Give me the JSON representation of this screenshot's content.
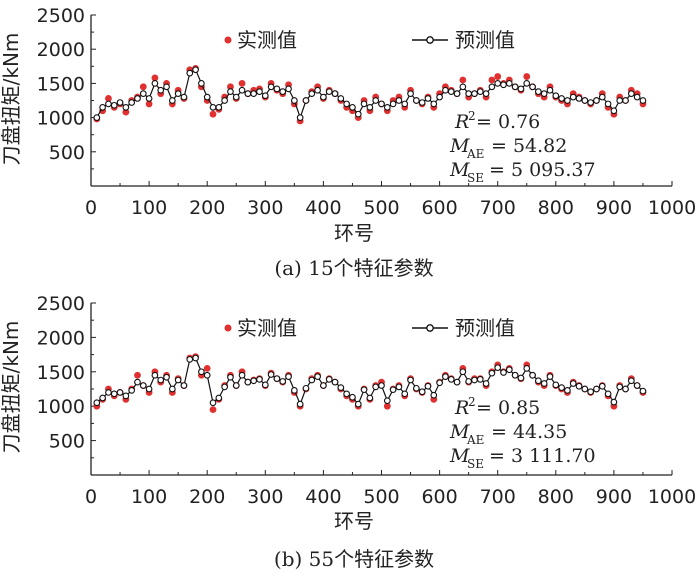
{
  "chart_data": [
    {
      "type": "scatter",
      "caption": "(a)  15个特征参数",
      "xlabel": "环号",
      "ylabel": "刀盘扭矩/kNm",
      "xlim": [
        0,
        1000
      ],
      "ylim": [
        0,
        2500
      ],
      "xticks": [
        "0",
        "100",
        "200",
        "300",
        "400",
        "500",
        "600",
        "700",
        "800",
        "900",
        "1000"
      ],
      "yticks": [
        "500",
        "1000",
        "1500",
        "2000",
        "2500"
      ],
      "legend": {
        "position": "top",
        "measured_label": "实测值",
        "predicted_label": "预测值"
      },
      "metrics": {
        "r2": "= 0.76",
        "mae": "= 54.82",
        "mse": "= 5 095.37"
      },
      "colors": {
        "measured": "#e03030",
        "predicted": "#111111"
      },
      "x": [
        10,
        20,
        30,
        40,
        50,
        60,
        70,
        80,
        90,
        100,
        110,
        120,
        130,
        140,
        150,
        160,
        170,
        180,
        190,
        200,
        210,
        220,
        230,
        240,
        250,
        260,
        270,
        280,
        290,
        300,
        310,
        320,
        330,
        340,
        350,
        360,
        370,
        380,
        390,
        400,
        410,
        420,
        430,
        440,
        450,
        460,
        470,
        480,
        490,
        500,
        510,
        520,
        530,
        540,
        550,
        560,
        570,
        580,
        590,
        600,
        610,
        620,
        630,
        640,
        650,
        660,
        670,
        680,
        690,
        700,
        710,
        720,
        730,
        740,
        750,
        760,
        770,
        780,
        790,
        800,
        810,
        820,
        830,
        840,
        850,
        860,
        870,
        880,
        890,
        900,
        910,
        920,
        930,
        940,
        950
      ],
      "series": [
        {
          "name": "实测值",
          "values": [
            980,
            1100,
            1280,
            1150,
            1200,
            1080,
            1250,
            1300,
            1450,
            1200,
            1580,
            1350,
            1500,
            1200,
            1400,
            1280,
            1700,
            1720,
            1450,
            1250,
            1050,
            1120,
            1300,
            1450,
            1280,
            1500,
            1350,
            1400,
            1420,
            1300,
            1500,
            1400,
            1350,
            1480,
            1200,
            950,
            1250,
            1380,
            1450,
            1280,
            1400,
            1350,
            1250,
            1150,
            1100,
            1000,
            1250,
            1100,
            1300,
            1200,
            1100,
            1250,
            1300,
            1150,
            1400,
            1250,
            1200,
            1300,
            1150,
            1350,
            1450,
            1400,
            1350,
            1550,
            1300,
            1350,
            1400,
            1300,
            1550,
            1600,
            1500,
            1550,
            1450,
            1400,
            1600,
            1450,
            1350,
            1300,
            1450,
            1300,
            1250,
            1200,
            1350,
            1300,
            1250,
            1200,
            1250,
            1350,
            1150,
            1050,
            1300,
            1250,
            1400,
            1350,
            1200
          ]
        },
        {
          "name": "预测值",
          "values": [
            1000,
            1150,
            1200,
            1180,
            1220,
            1150,
            1220,
            1280,
            1350,
            1280,
            1500,
            1400,
            1450,
            1250,
            1350,
            1300,
            1650,
            1700,
            1500,
            1300,
            1150,
            1150,
            1250,
            1380,
            1300,
            1400,
            1350,
            1350,
            1380,
            1320,
            1450,
            1420,
            1380,
            1420,
            1250,
            1000,
            1250,
            1350,
            1400,
            1300,
            1380,
            1350,
            1280,
            1200,
            1150,
            1050,
            1200,
            1150,
            1250,
            1200,
            1150,
            1200,
            1250,
            1200,
            1350,
            1250,
            1220,
            1280,
            1200,
            1300,
            1400,
            1380,
            1350,
            1450,
            1350,
            1350,
            1380,
            1350,
            1450,
            1500,
            1480,
            1500,
            1450,
            1420,
            1500,
            1450,
            1380,
            1350,
            1400,
            1320,
            1280,
            1250,
            1300,
            1280,
            1250,
            1220,
            1250,
            1300,
            1200,
            1100,
            1250,
            1250,
            1350,
            1300,
            1250
          ]
        }
      ]
    },
    {
      "type": "scatter",
      "caption": "(b)  55个特征参数",
      "xlabel": "环号",
      "ylabel": "刀盘扭矩/kNm",
      "xlim": [
        0,
        1000
      ],
      "ylim": [
        0,
        2500
      ],
      "xticks": [
        "0",
        "100",
        "200",
        "300",
        "400",
        "500",
        "600",
        "700",
        "800",
        "900",
        "1000"
      ],
      "yticks": [
        "500",
        "1000",
        "1500",
        "2000",
        "2500"
      ],
      "legend": {
        "position": "top",
        "measured_label": "实测值",
        "predicted_label": "预测值"
      },
      "metrics": {
        "r2": "= 0.85",
        "mae": "= 44.35",
        "mse": "= 3 111.70"
      },
      "colors": {
        "measured": "#e03030",
        "predicted": "#111111"
      },
      "x": [
        10,
        20,
        30,
        40,
        50,
        60,
        70,
        80,
        90,
        100,
        110,
        120,
        130,
        140,
        150,
        160,
        170,
        180,
        190,
        200,
        210,
        220,
        230,
        240,
        250,
        260,
        270,
        280,
        290,
        300,
        310,
        320,
        330,
        340,
        350,
        360,
        370,
        380,
        390,
        400,
        410,
        420,
        430,
        440,
        450,
        460,
        470,
        480,
        490,
        500,
        510,
        520,
        530,
        540,
        550,
        560,
        570,
        580,
        590,
        600,
        610,
        620,
        630,
        640,
        650,
        660,
        670,
        680,
        690,
        700,
        710,
        720,
        730,
        740,
        750,
        760,
        770,
        780,
        790,
        800,
        810,
        820,
        830,
        840,
        850,
        860,
        870,
        880,
        890,
        900,
        910,
        920,
        930,
        940,
        950
      ],
      "series": [
        {
          "name": "实测值",
          "values": [
            1000,
            1100,
            1250,
            1150,
            1200,
            1100,
            1250,
            1450,
            1300,
            1200,
            1500,
            1350,
            1450,
            1200,
            1400,
            1300,
            1700,
            1720,
            1450,
            1550,
            950,
            1100,
            1300,
            1450,
            1300,
            1500,
            1350,
            1380,
            1400,
            1300,
            1480,
            1400,
            1350,
            1450,
            1200,
            1000,
            1250,
            1400,
            1450,
            1300,
            1400,
            1350,
            1250,
            1150,
            1100,
            1000,
            1250,
            1100,
            1300,
            1350,
            1000,
            1250,
            1300,
            1150,
            1400,
            1250,
            1200,
            1300,
            1100,
            1350,
            1450,
            1400,
            1350,
            1550,
            1350,
            1400,
            1400,
            1300,
            1500,
            1600,
            1500,
            1550,
            1450,
            1400,
            1600,
            1450,
            1350,
            1300,
            1450,
            1300,
            1250,
            1200,
            1350,
            1300,
            1250,
            1200,
            1250,
            1300,
            1150,
            1000,
            1300,
            1250,
            1400,
            1300,
            1200
          ]
        },
        {
          "name": "预测值",
          "values": [
            1050,
            1120,
            1200,
            1180,
            1200,
            1150,
            1230,
            1350,
            1300,
            1250,
            1450,
            1380,
            1420,
            1250,
            1380,
            1300,
            1680,
            1700,
            1500,
            1450,
            1050,
            1120,
            1280,
            1420,
            1300,
            1450,
            1350,
            1370,
            1390,
            1310,
            1460,
            1400,
            1360,
            1430,
            1230,
            1030,
            1260,
            1380,
            1430,
            1300,
            1390,
            1350,
            1270,
            1180,
            1130,
            1030,
            1240,
            1120,
            1280,
            1300,
            1080,
            1240,
            1280,
            1180,
            1380,
            1260,
            1210,
            1290,
            1160,
            1340,
            1430,
            1390,
            1350,
            1500,
            1360,
            1380,
            1390,
            1330,
            1480,
            1560,
            1490,
            1530,
            1450,
            1410,
            1550,
            1450,
            1370,
            1330,
            1430,
            1310,
            1270,
            1230,
            1330,
            1290,
            1250,
            1210,
            1250,
            1290,
            1180,
            1060,
            1280,
            1250,
            1370,
            1300,
            1220
          ]
        }
      ]
    }
  ]
}
